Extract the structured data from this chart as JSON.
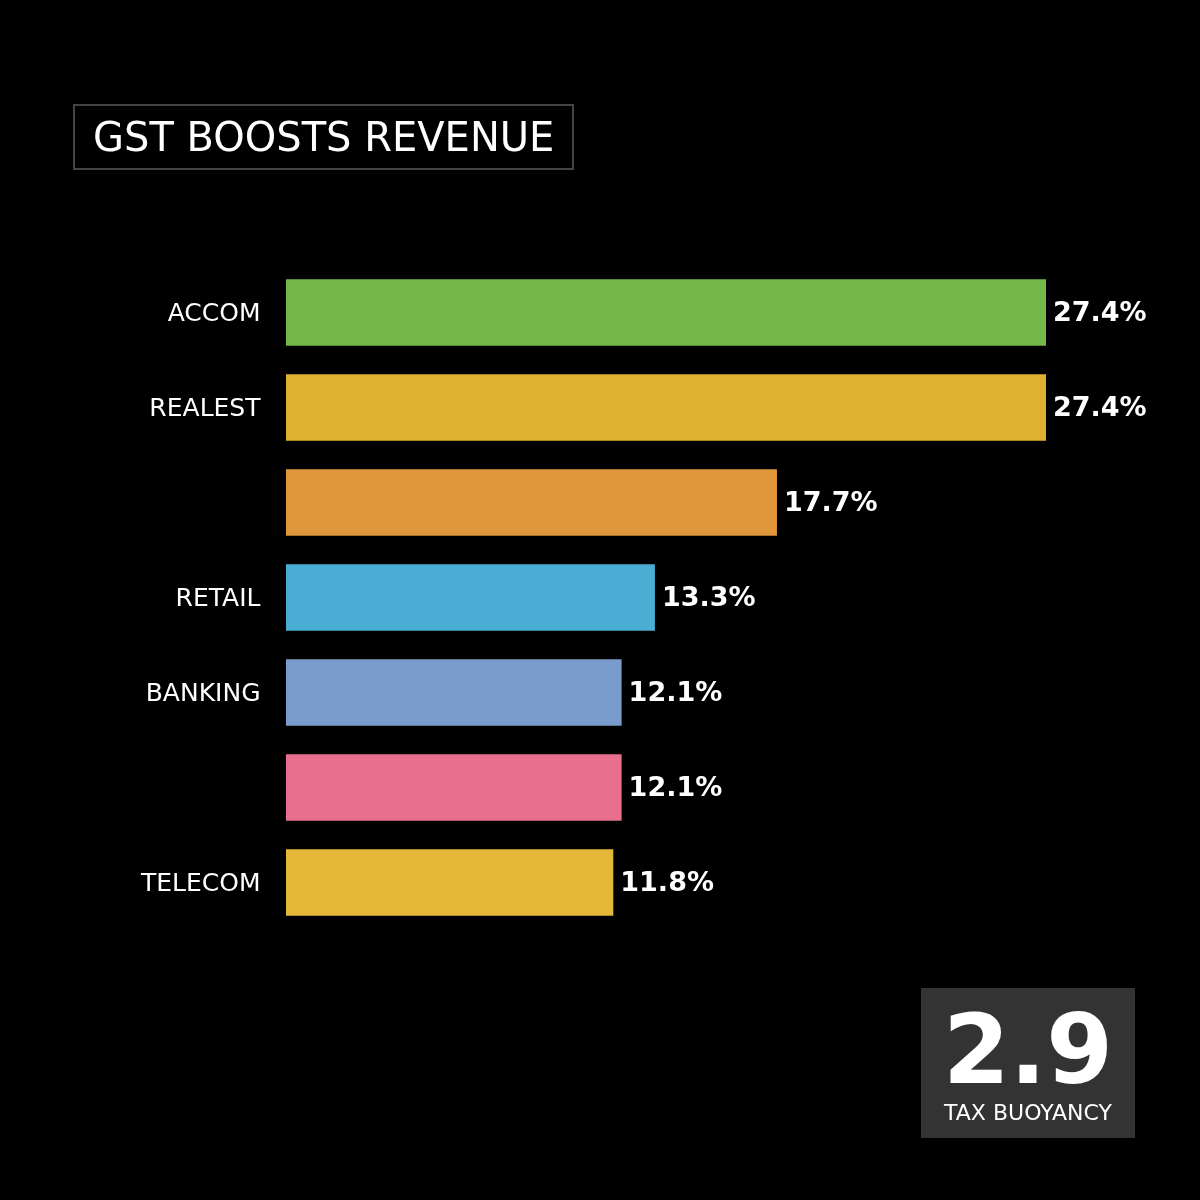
{
  "chart_data": {
    "type": "bar",
    "orientation": "horizontal",
    "title": "GST BOOSTS REVENUE",
    "categories": [
      "ACCOM",
      "REALEST",
      null,
      "RETAIL",
      "BANKING",
      null,
      "TELECOM"
    ],
    "values": [
      27.4,
      27.4,
      17.7,
      13.3,
      12.1,
      12.1,
      11.8
    ],
    "colors": [
      "#74b84a",
      "#e0b030",
      "#e0973c",
      "#4aaed4",
      "#7a9ccc",
      "#e8708e",
      "#e6b83a"
    ],
    "value_labels": [
      "27.4%",
      "27.4%",
      "17.7%",
      "13.3%",
      "12.1%",
      "12.1%",
      "11.8%"
    ],
    "annotations": [
      "2.9",
      "TAX BUOYANCY"
    ]
  }
}
